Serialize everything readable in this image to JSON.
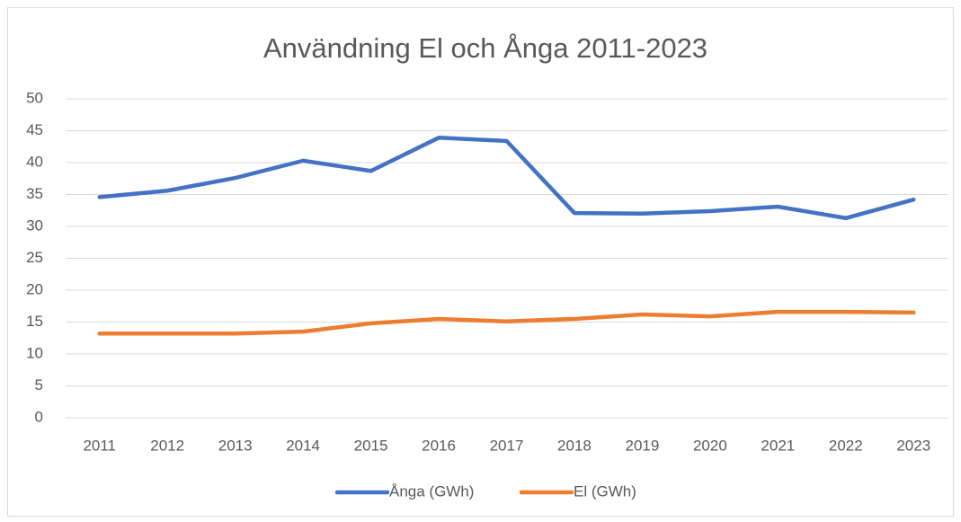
{
  "chart_data": {
    "type": "line",
    "title": "Användning El och Ånga 2011-2023",
    "categories": [
      "2011",
      "2012",
      "2013",
      "2014",
      "2015",
      "2016",
      "2017",
      "2018",
      "2019",
      "2020",
      "2021",
      "2022",
      "2023"
    ],
    "series": [
      {
        "name": "Ånga (GWh)",
        "color": "#4472c4",
        "values": [
          34.6,
          35.6,
          37.6,
          40.3,
          38.7,
          43.9,
          43.4,
          32.1,
          32.0,
          32.4,
          33.1,
          31.3,
          34.2
        ]
      },
      {
        "name": "El (GWh)",
        "color": "#ed7d31",
        "values": [
          13.2,
          13.2,
          13.2,
          13.5,
          14.8,
          15.5,
          15.1,
          15.5,
          16.2,
          15.9,
          16.6,
          16.6,
          16.5
        ]
      }
    ],
    "ylim": [
      0,
      50
    ],
    "yticks": [
      0,
      5,
      10,
      15,
      20,
      25,
      30,
      35,
      40,
      45,
      50
    ],
    "grid": true,
    "legend": "bottom"
  }
}
